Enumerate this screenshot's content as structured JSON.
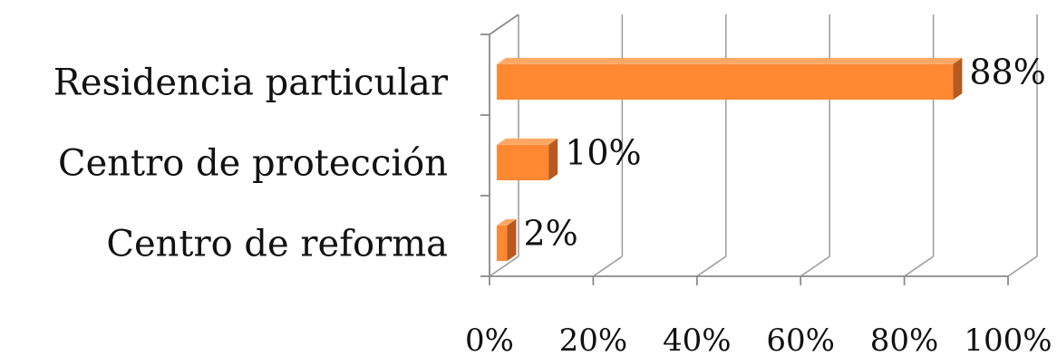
{
  "chart_data": {
    "type": "bar",
    "orientation": "horizontal",
    "style": "3d",
    "categories": [
      "Residencia particular",
      "Centro de protección",
      "Centro de reforma"
    ],
    "values": [
      88,
      10,
      2
    ],
    "data_labels": [
      "88%",
      "10%",
      "2%"
    ],
    "x_ticks": [
      "0%",
      "20%",
      "40%",
      "60%",
      "80%",
      "100%"
    ],
    "xlim": [
      0,
      100
    ],
    "grid": true,
    "legend": "none",
    "bar_color": "#ff8833",
    "bar_side_color": "#b85a1e",
    "bar_top_color": "#ffa866"
  }
}
